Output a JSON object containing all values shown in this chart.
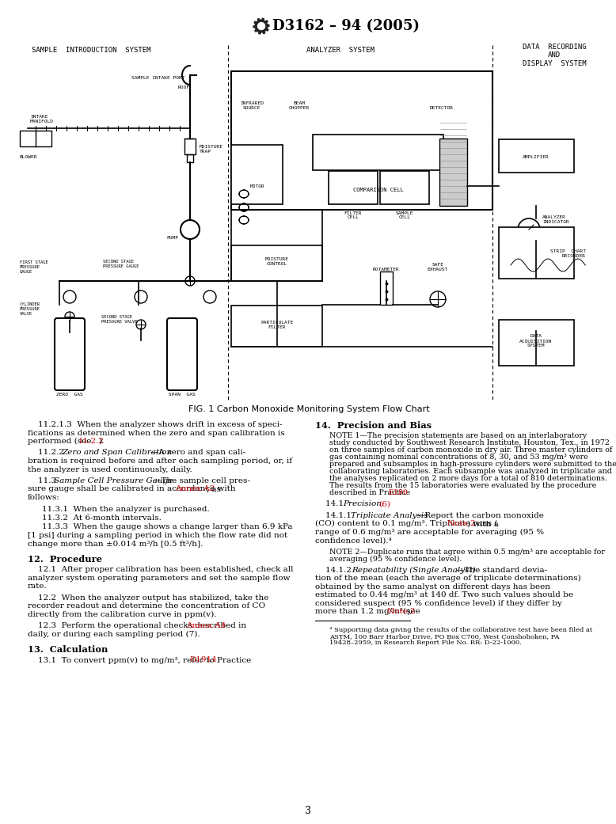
{
  "page_bg": "#ffffff",
  "header_title": "D3162 – 94 (2005)",
  "fig_caption": "FIG. 1 Carbon Monoxide Monitoring System Flow Chart",
  "page_number": "3",
  "red_color": "#cc0000",
  "text_color": "#000000",
  "section_labels": {
    "sample_intro": "SAMPLE  INTRODUCTION  SYSTEM",
    "analyzer": "ANALYZER  SYSTEM",
    "data_recording": "DATA  RECORDING\nAND\nDISPLAY  SYSTEM"
  }
}
